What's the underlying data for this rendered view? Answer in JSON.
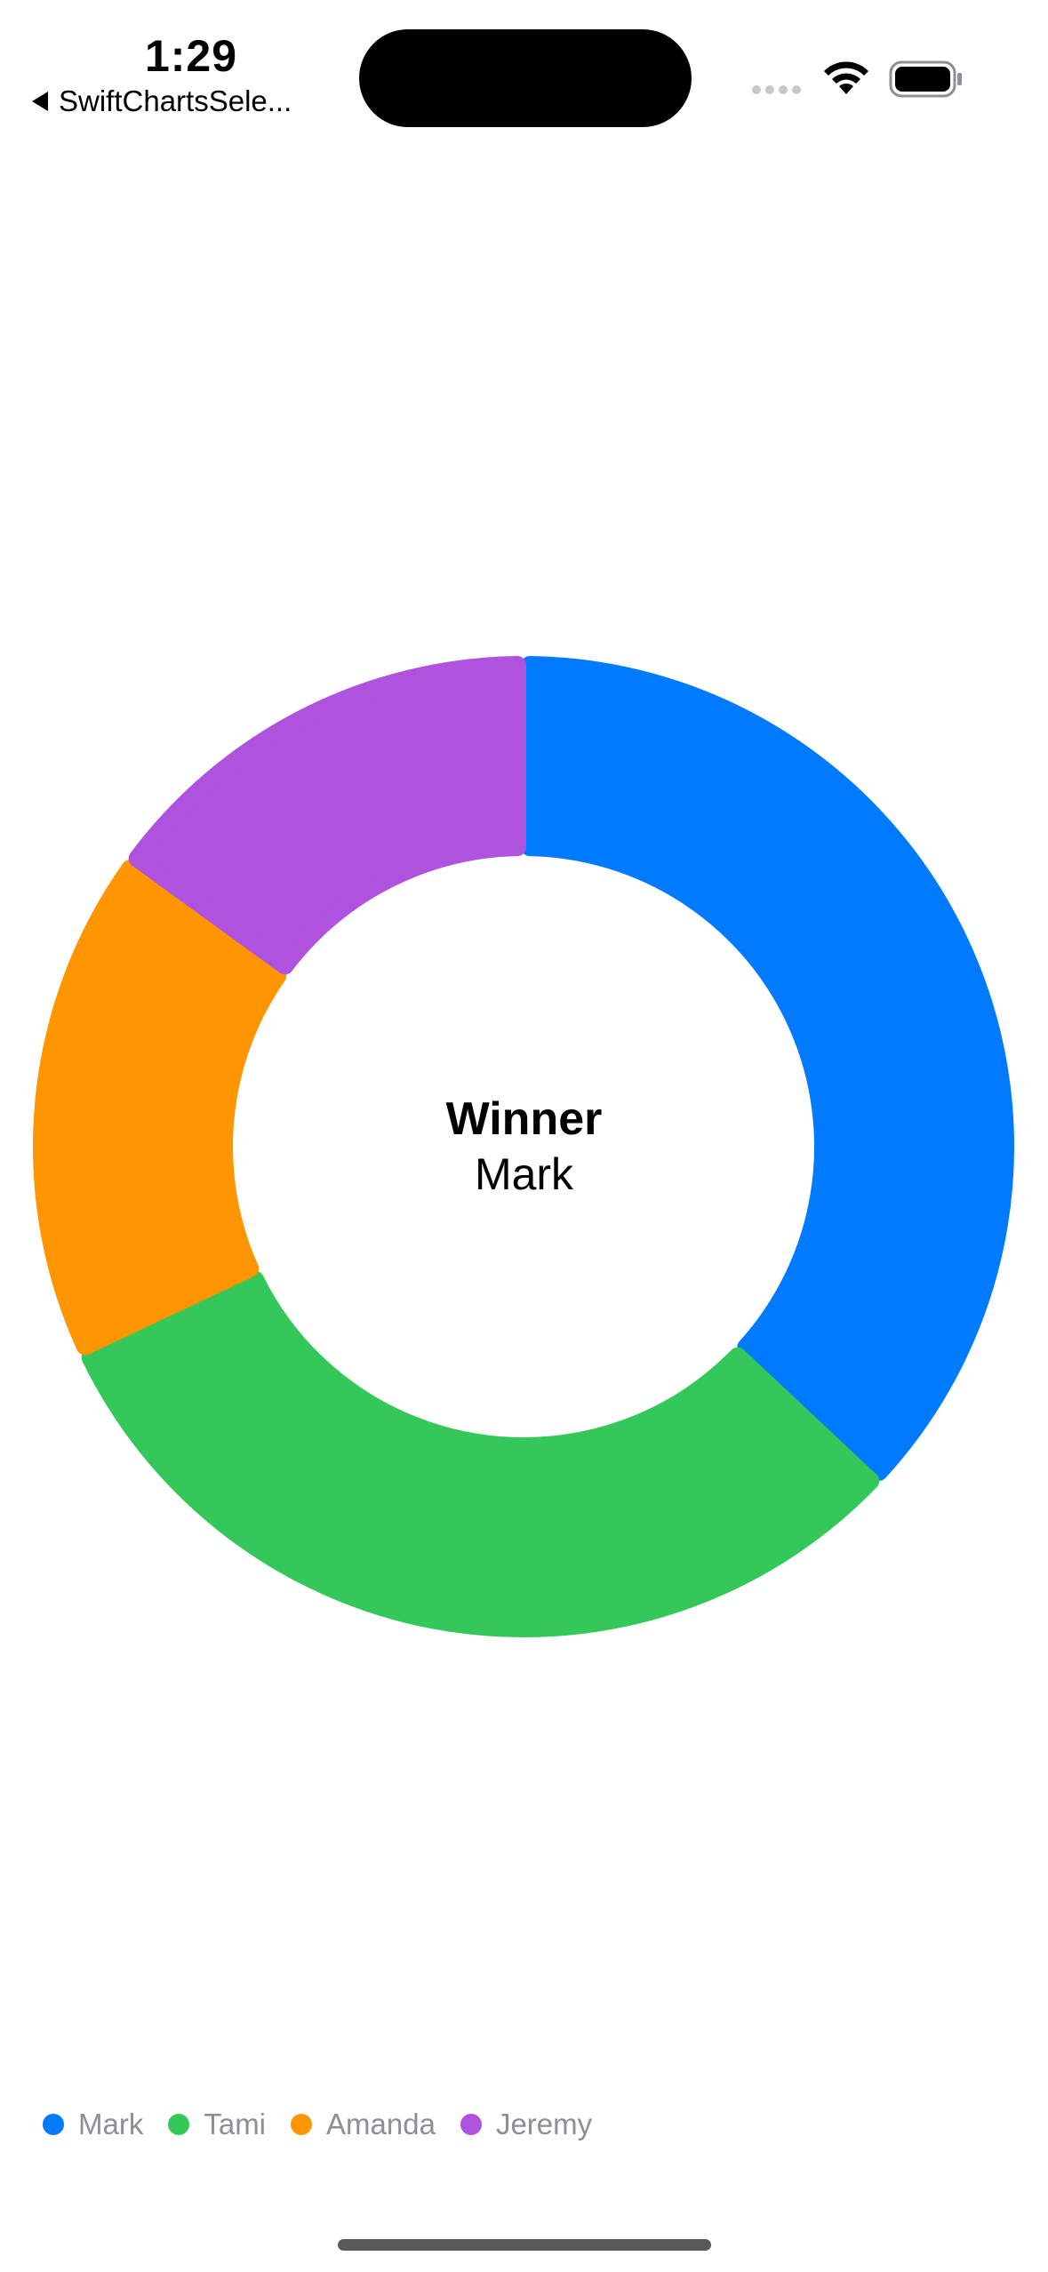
{
  "status_bar": {
    "time": "1:29",
    "back_label": "SwiftChartsSele...",
    "icons": [
      "cellular-signal-icon",
      "wifi-icon",
      "battery-icon"
    ]
  },
  "center": {
    "title": "Winner",
    "value": "Mark"
  },
  "chart_data": {
    "type": "pie",
    "style": "donut",
    "categories": [
      "Mark",
      "Tami",
      "Amanda",
      "Jeremy"
    ],
    "values": [
      37,
      31,
      17,
      15
    ],
    "colors": [
      "#007AFF",
      "#34C759",
      "#FF9500",
      "#AF52DE"
    ],
    "legend": "bottom-left"
  }
}
